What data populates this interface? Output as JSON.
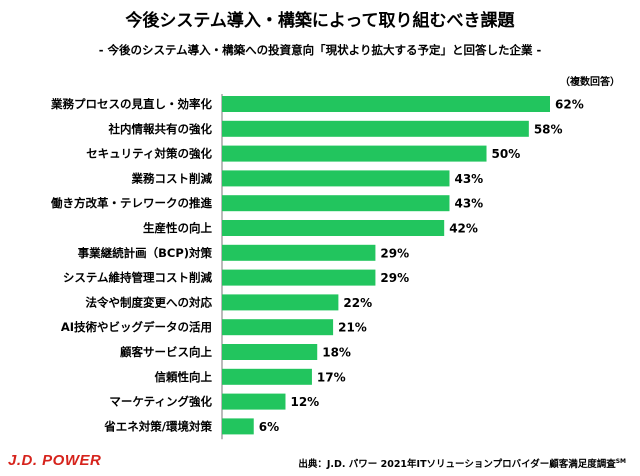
{
  "title": "今後システム導入・構築によって取り組むべき課題",
  "subtitle": "- 今後のシステム導入・構築への投資意向「現状より拡大する予定」と回答した企業 -",
  "note": "（複数回答）",
  "logo_text": "J.D. POWER",
  "source_text": "出典：J.D. パワー 2021年ITソリューションプロバイダー顧客満足度調査",
  "source_sup": "SM",
  "colors": {
    "bar": "#22c55e",
    "logo": "#d6231c"
  },
  "chart_data": {
    "type": "bar",
    "orientation": "horizontal",
    "categories": [
      "業務プロセスの見直し・効率化",
      "社内情報共有の強化",
      "セキュリティ対策の強化",
      "業務コスト削減",
      "働き方改革・テレワークの推進",
      "生産性の向上",
      "事業継続計画（BCP)対策",
      "システム維持管理コスト削減",
      "法令や制度変更への対応",
      "AI技術やビッグデータの活用",
      "顧客サービス向上",
      "信頼性向上",
      "マーケティング強化",
      "省エネ対策/環境対策"
    ],
    "values": [
      62,
      58,
      50,
      43,
      43,
      42,
      29,
      29,
      22,
      21,
      18,
      17,
      12,
      6
    ],
    "value_suffix": "%",
    "xlim": [
      0,
      62
    ],
    "grid": false,
    "legend": "none"
  }
}
